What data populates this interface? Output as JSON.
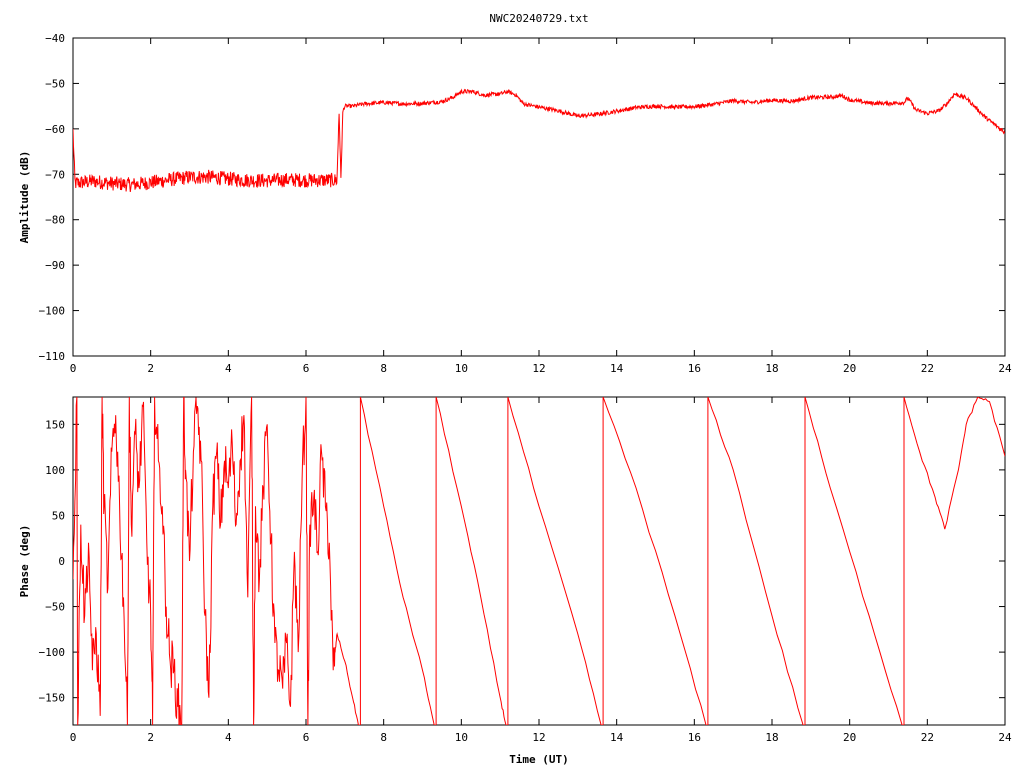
{
  "title": "NWC20240729.txt",
  "colors": {
    "trace": "#ff0000",
    "axis": "#000000",
    "background": "#ffffff"
  },
  "chart_data": [
    {
      "type": "line",
      "name": "amplitude-panel",
      "title": "NWC20240729.txt",
      "xlabel": "",
      "ylabel": "Amplitude (dB)",
      "xlim": [
        0,
        24
      ],
      "ylim": [
        -110,
        -40
      ],
      "xticks": [
        0,
        2,
        4,
        6,
        8,
        10,
        12,
        14,
        16,
        18,
        20,
        22,
        24
      ],
      "yticks": [
        -110,
        -100,
        -90,
        -80,
        -70,
        -60,
        -50,
        -40
      ],
      "xtick_labels": [
        "0",
        "2",
        "4",
        "6",
        "8",
        "10",
        "12",
        "14",
        "16",
        "18",
        "20",
        "22",
        "24"
      ],
      "ytick_labels": [
        "−110",
        "−100",
        "−90",
        "−80",
        "−70",
        "−60",
        "−50",
        "−40"
      ],
      "grid": false,
      "series": [
        {
          "color": "#ff0000",
          "noise": 1.0,
          "points": [
            [
              0,
              -60.5
            ],
            [
              0.05,
              -72
            ],
            [
              0.5,
              -71.5
            ],
            [
              1,
              -72
            ],
            [
              1.5,
              -72.3
            ],
            [
              2,
              -71.8
            ],
            [
              2.5,
              -71.2
            ],
            [
              3,
              -70.6
            ],
            [
              3.5,
              -70.6
            ],
            [
              4,
              -71
            ],
            [
              4.5,
              -71.3
            ],
            [
              5,
              -71.4
            ],
            [
              5.5,
              -71.2
            ],
            [
              6,
              -71.3
            ],
            [
              6.5,
              -71.3
            ],
            [
              6.8,
              -71.3
            ],
            [
              6.85,
              -56
            ],
            [
              6.9,
              -71
            ],
            [
              6.95,
              -56
            ],
            [
              7.0,
              -55
            ],
            [
              7.2,
              -55
            ],
            [
              7.5,
              -54.5
            ],
            [
              8,
              -54.2
            ],
            [
              8.5,
              -54.5
            ],
            [
              9,
              -54.4
            ],
            [
              9.5,
              -54
            ],
            [
              9.8,
              -53
            ],
            [
              10,
              -51.8
            ],
            [
              10.3,
              -51.8
            ],
            [
              10.6,
              -52.6
            ],
            [
              11,
              -52.3
            ],
            [
              11.2,
              -51.8
            ],
            [
              11.4,
              -52.5
            ],
            [
              11.6,
              -54.5
            ],
            [
              12,
              -55.2
            ],
            [
              12.5,
              -56
            ],
            [
              13,
              -57.2
            ],
            [
              13.5,
              -56.8
            ],
            [
              14,
              -56.1
            ],
            [
              14.5,
              -55.3
            ],
            [
              15,
              -55
            ],
            [
              15.5,
              -55.2
            ],
            [
              16,
              -55.1
            ],
            [
              16.5,
              -54.6
            ],
            [
              17,
              -53.8
            ],
            [
              17.5,
              -54.2
            ],
            [
              18,
              -53.7
            ],
            [
              18.5,
              -53.9
            ],
            [
              19,
              -53.1
            ],
            [
              19.5,
              -53
            ],
            [
              19.8,
              -52.7
            ],
            [
              20,
              -53.6
            ],
            [
              20.5,
              -54.3
            ],
            [
              21,
              -54.4
            ],
            [
              21.4,
              -54.2
            ],
            [
              21.5,
              -53.2
            ],
            [
              21.7,
              -55.8
            ],
            [
              22,
              -56.6
            ],
            [
              22.3,
              -56
            ],
            [
              22.5,
              -54.5
            ],
            [
              22.7,
              -52.3
            ],
            [
              23,
              -53.2
            ],
            [
              23.5,
              -57.5
            ],
            [
              24,
              -60.8
            ]
          ]
        }
      ]
    },
    {
      "type": "line",
      "name": "phase-panel",
      "title": "",
      "xlabel": "Time (UT)",
      "ylabel": "Phase (deg)",
      "xlim": [
        0,
        24
      ],
      "ylim": [
        -180,
        180
      ],
      "xticks": [
        0,
        2,
        4,
        6,
        8,
        10,
        12,
        14,
        16,
        18,
        20,
        22,
        24
      ],
      "yticks": [
        -150,
        -100,
        -50,
        0,
        50,
        100,
        150
      ],
      "xtick_labels": [
        "0",
        "2",
        "4",
        "6",
        "8",
        "10",
        "12",
        "14",
        "16",
        "18",
        "20",
        "22",
        "24"
      ],
      "ytick_labels": [
        "−150",
        "−100",
        "−50",
        "0",
        "50",
        "100",
        "150"
      ],
      "grid": false,
      "series": [
        {
          "color": "#ff0000",
          "noisy_until": 6.75,
          "points": [
            [
              0,
              -20
            ],
            [
              0.1,
              180
            ],
            [
              0.12,
              -180
            ],
            [
              0.2,
              40
            ],
            [
              0.3,
              -60
            ],
            [
              0.4,
              20
            ],
            [
              0.5,
              -120
            ],
            [
              0.6,
              -80
            ],
            [
              0.7,
              -170
            ],
            [
              0.75,
              180
            ],
            [
              0.8,
              60
            ],
            [
              0.9,
              -30
            ],
            [
              1.0,
              120
            ],
            [
              1.1,
              160
            ],
            [
              1.2,
              60
            ],
            [
              1.3,
              -40
            ],
            [
              1.4,
              -180
            ],
            [
              1.45,
              180
            ],
            [
              1.5,
              40
            ],
            [
              1.6,
              140
            ],
            [
              1.7,
              80
            ],
            [
              1.8,
              170
            ],
            [
              1.9,
              20
            ],
            [
              2.0,
              -60
            ],
            [
              2.05,
              -180
            ],
            [
              2.1,
              180
            ],
            [
              2.2,
              110
            ],
            [
              2.3,
              60
            ],
            [
              2.4,
              -50
            ],
            [
              2.5,
              -110
            ],
            [
              2.6,
              -120
            ],
            [
              2.7,
              -160
            ],
            [
              2.8,
              -180
            ],
            [
              2.85,
              180
            ],
            [
              2.9,
              100
            ],
            [
              3.0,
              0
            ],
            [
              3.1,
              120
            ],
            [
              3.2,
              170
            ],
            [
              3.3,
              110
            ],
            [
              3.4,
              -60
            ],
            [
              3.5,
              -150
            ],
            [
              3.6,
              60
            ],
            [
              3.7,
              120
            ],
            [
              3.8,
              40
            ],
            [
              3.9,
              110
            ],
            [
              4.0,
              80
            ],
            [
              4.1,
              130
            ],
            [
              4.2,
              40
            ],
            [
              4.3,
              110
            ],
            [
              4.4,
              160
            ],
            [
              4.5,
              -40
            ],
            [
              4.6,
              180
            ],
            [
              4.65,
              -180
            ],
            [
              4.7,
              60
            ],
            [
              4.8,
              -20
            ],
            [
              4.9,
              80
            ],
            [
              5.0,
              150
            ],
            [
              5.1,
              20
            ],
            [
              5.2,
              -90
            ],
            [
              5.3,
              -120
            ],
            [
              5.4,
              -140
            ],
            [
              5.5,
              -90
            ],
            [
              5.6,
              -160
            ],
            [
              5.7,
              10
            ],
            [
              5.8,
              -100
            ],
            [
              5.9,
              90
            ],
            [
              6.0,
              180
            ],
            [
              6.05,
              -180
            ],
            [
              6.1,
              40
            ],
            [
              6.2,
              70
            ],
            [
              6.3,
              10
            ],
            [
              6.4,
              120
            ],
            [
              6.5,
              60
            ],
            [
              6.6,
              20
            ],
            [
              6.7,
              -120
            ],
            [
              6.75,
              -100
            ],
            [
              6.8,
              -80
            ],
            [
              7.0,
              -110
            ],
            [
              7.2,
              -150
            ],
            [
              7.35,
              -180
            ],
            [
              7.4,
              180
            ],
            [
              8.0,
              60
            ],
            [
              8.5,
              -40
            ],
            [
              9.0,
              -120
            ],
            [
              9.3,
              -180
            ],
            [
              9.35,
              180
            ],
            [
              10.0,
              60
            ],
            [
              10.5,
              -40
            ],
            [
              11.0,
              -150
            ],
            [
              11.15,
              -180
            ],
            [
              11.2,
              180
            ],
            [
              12.0,
              60
            ],
            [
              13.0,
              -80
            ],
            [
              13.6,
              -180
            ],
            [
              13.65,
              180
            ],
            [
              14.5,
              80
            ],
            [
              15.5,
              -60
            ],
            [
              16.3,
              -180
            ],
            [
              16.35,
              180
            ],
            [
              17.0,
              100
            ],
            [
              18.0,
              -60
            ],
            [
              18.8,
              -180
            ],
            [
              18.85,
              180
            ],
            [
              19.5,
              80
            ],
            [
              20.5,
              -60
            ],
            [
              21.35,
              -180
            ],
            [
              21.4,
              180
            ],
            [
              21.8,
              120
            ],
            [
              22.2,
              70
            ],
            [
              22.45,
              35
            ],
            [
              22.8,
              100
            ],
            [
              23.0,
              150
            ],
            [
              23.3,
              180
            ],
            [
              23.6,
              175
            ],
            [
              24,
              115
            ]
          ]
        }
      ]
    }
  ]
}
